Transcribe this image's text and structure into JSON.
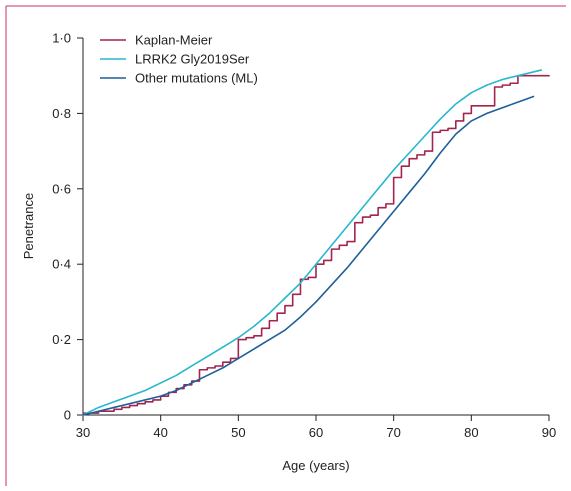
{
  "chart_data": {
    "type": "line",
    "title": "",
    "xlabel": "Age (years)",
    "ylabel": "Penetrance",
    "xlim": [
      30,
      90
    ],
    "ylim": [
      0,
      1.0
    ],
    "x_ticks": [
      "30",
      "40",
      "50",
      "60",
      "70",
      "80",
      "90"
    ],
    "x_tick_values": [
      30,
      40,
      50,
      60,
      70,
      80,
      90
    ],
    "y_ticks": [
      "0",
      "0·2",
      "0·4",
      "0·6",
      "0·8",
      "1·0"
    ],
    "y_tick_values": [
      0,
      0.2,
      0.4,
      0.6,
      0.8,
      1.0
    ],
    "grid": false,
    "legend_position": "top-left",
    "frame_color": "#c8335e",
    "series": [
      {
        "name": "Kaplan-Meier",
        "style": "step",
        "color": "#a3244f",
        "x": [
          30,
          32,
          34,
          35,
          36,
          37,
          38,
          39,
          40,
          41,
          42,
          43,
          44,
          45,
          46,
          47,
          48,
          49,
          50,
          51,
          52,
          53,
          54,
          55,
          56,
          57,
          58,
          59,
          60,
          61,
          62,
          63,
          64,
          65,
          66,
          67,
          68,
          69,
          70,
          71,
          72,
          73,
          74,
          75,
          76,
          77,
          78,
          79,
          80,
          81,
          82,
          83,
          84,
          85,
          86,
          87,
          88,
          89,
          90
        ],
        "y": [
          0.005,
          0.01,
          0.015,
          0.02,
          0.025,
          0.03,
          0.035,
          0.04,
          0.05,
          0.06,
          0.07,
          0.08,
          0.09,
          0.12,
          0.125,
          0.13,
          0.14,
          0.15,
          0.2,
          0.205,
          0.21,
          0.23,
          0.25,
          0.27,
          0.29,
          0.32,
          0.36,
          0.365,
          0.4,
          0.41,
          0.44,
          0.45,
          0.46,
          0.51,
          0.525,
          0.53,
          0.55,
          0.56,
          0.63,
          0.66,
          0.68,
          0.69,
          0.7,
          0.75,
          0.755,
          0.76,
          0.78,
          0.8,
          0.82,
          0.82,
          0.82,
          0.87,
          0.875,
          0.88,
          0.9,
          0.9,
          0.9,
          0.9,
          0.9
        ]
      },
      {
        "name": "LRRK2 Gly2019Ser",
        "style": "smooth",
        "color": "#29b6cf",
        "x": [
          30,
          32,
          34,
          36,
          38,
          40,
          42,
          44,
          46,
          48,
          50,
          52,
          54,
          56,
          58,
          60,
          62,
          64,
          66,
          68,
          70,
          72,
          74,
          76,
          78,
          80,
          82,
          84,
          86,
          88,
          89
        ],
        "y": [
          0.0,
          0.02,
          0.035,
          0.05,
          0.065,
          0.085,
          0.105,
          0.13,
          0.155,
          0.18,
          0.205,
          0.235,
          0.27,
          0.31,
          0.35,
          0.4,
          0.45,
          0.5,
          0.55,
          0.6,
          0.65,
          0.695,
          0.74,
          0.785,
          0.825,
          0.855,
          0.875,
          0.89,
          0.9,
          0.91,
          0.915
        ]
      },
      {
        "name": "Other mutations (ML)",
        "style": "smooth",
        "color": "#1f5f9a",
        "x": [
          30,
          32,
          34,
          36,
          38,
          40,
          42,
          44,
          46,
          48,
          50,
          52,
          54,
          56,
          58,
          60,
          62,
          64,
          66,
          68,
          70,
          72,
          74,
          76,
          78,
          80,
          82,
          84,
          86,
          88
        ],
        "y": [
          0.0,
          0.01,
          0.02,
          0.03,
          0.04,
          0.05,
          0.065,
          0.085,
          0.105,
          0.125,
          0.15,
          0.175,
          0.2,
          0.225,
          0.26,
          0.3,
          0.345,
          0.39,
          0.44,
          0.49,
          0.54,
          0.59,
          0.64,
          0.695,
          0.745,
          0.78,
          0.8,
          0.815,
          0.83,
          0.845
        ]
      }
    ]
  }
}
